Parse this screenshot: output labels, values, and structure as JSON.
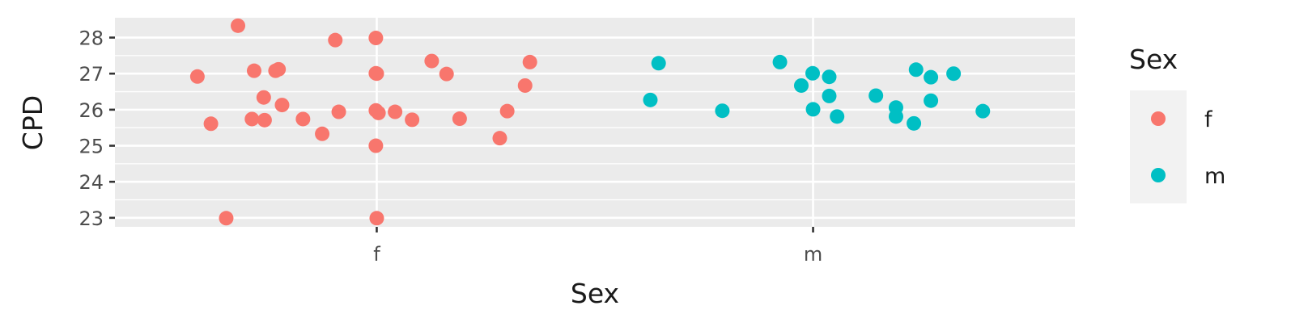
{
  "chart_data": {
    "type": "scatter",
    "title": "",
    "xlabel": "Sex",
    "ylabel": "CPD",
    "x_categories": [
      "f",
      "m"
    ],
    "ylim": [
      22.75,
      28.55
    ],
    "y_ticks": [
      23,
      24,
      25,
      26,
      27,
      28
    ],
    "grid": true,
    "legend": {
      "title": "Sex",
      "position": "right",
      "entries": [
        {
          "label": "f",
          "color": "#F8766D"
        },
        {
          "label": "m",
          "color": "#00BFC4"
        }
      ]
    },
    "series": [
      {
        "name": "f",
        "color": "#F8766D",
        "points": [
          {
            "x": 0.589,
            "y": 26.92
          },
          {
            "x": 0.62,
            "y": 25.61
          },
          {
            "x": 0.655,
            "y": 22.99
          },
          {
            "x": 0.682,
            "y": 28.33
          },
          {
            "x": 0.714,
            "y": 25.74
          },
          {
            "x": 0.719,
            "y": 27.08
          },
          {
            "x": 0.741,
            "y": 26.34
          },
          {
            "x": 0.743,
            "y": 25.71
          },
          {
            "x": 0.768,
            "y": 27.08
          },
          {
            "x": 0.775,
            "y": 27.12
          },
          {
            "x": 0.783,
            "y": 26.13
          },
          {
            "x": 0.831,
            "y": 25.74
          },
          {
            "x": 0.875,
            "y": 25.33
          },
          {
            "x": 0.905,
            "y": 27.93
          },
          {
            "x": 0.913,
            "y": 25.94
          },
          {
            "x": 0.998,
            "y": 27.99
          },
          {
            "x": 0.998,
            "y": 27.01
          },
          {
            "x": 1.0,
            "y": 27.0
          },
          {
            "x": 0.998,
            "y": 25.98
          },
          {
            "x": 1.004,
            "y": 25.91
          },
          {
            "x": 0.998,
            "y": 25.0
          },
          {
            "x": 1.0,
            "y": 22.99
          },
          {
            "x": 1.042,
            "y": 25.94
          },
          {
            "x": 1.081,
            "y": 25.72
          },
          {
            "x": 1.126,
            "y": 27.35
          },
          {
            "x": 1.16,
            "y": 26.99
          },
          {
            "x": 1.19,
            "y": 25.75
          },
          {
            "x": 1.282,
            "y": 25.21
          },
          {
            "x": 1.299,
            "y": 25.96
          },
          {
            "x": 1.34,
            "y": 26.67
          },
          {
            "x": 1.351,
            "y": 27.32
          }
        ]
      },
      {
        "name": "m",
        "color": "#00BFC4",
        "points": [
          {
            "x": 1.627,
            "y": 26.27
          },
          {
            "x": 1.646,
            "y": 27.29
          },
          {
            "x": 1.792,
            "y": 25.97
          },
          {
            "x": 1.924,
            "y": 27.32
          },
          {
            "x": 1.973,
            "y": 26.67
          },
          {
            "x": 1.999,
            "y": 27.01
          },
          {
            "x": 2.0,
            "y": 26.01
          },
          {
            "x": 2.037,
            "y": 26.38
          },
          {
            "x": 2.037,
            "y": 26.91
          },
          {
            "x": 2.055,
            "y": 25.81
          },
          {
            "x": 2.144,
            "y": 26.39
          },
          {
            "x": 2.19,
            "y": 25.81
          },
          {
            "x": 2.19,
            "y": 26.06
          },
          {
            "x": 2.231,
            "y": 25.62
          },
          {
            "x": 2.236,
            "y": 27.11
          },
          {
            "x": 2.27,
            "y": 26.9
          },
          {
            "x": 2.27,
            "y": 26.25
          },
          {
            "x": 2.322,
            "y": 27.0
          },
          {
            "x": 2.389,
            "y": 25.96
          }
        ]
      }
    ]
  }
}
